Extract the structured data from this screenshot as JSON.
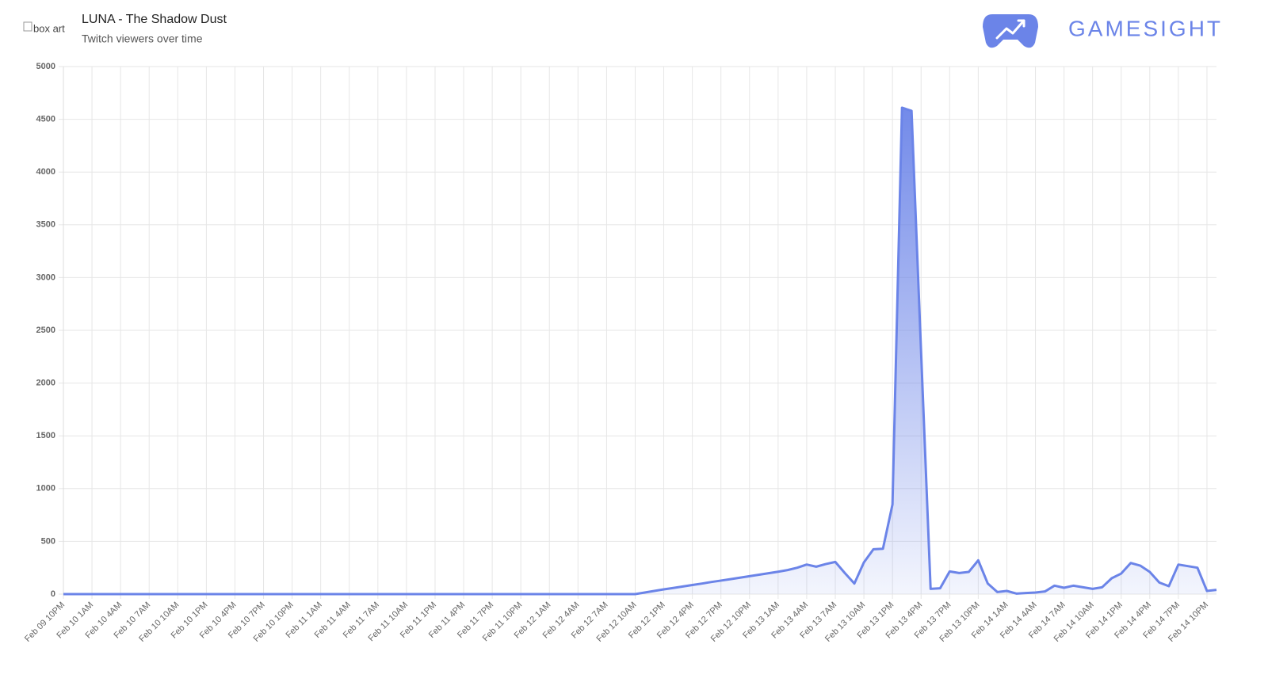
{
  "header": {
    "image_alt": "box art",
    "brand": "GAMESIGHT"
  },
  "chart_data": {
    "type": "area",
    "title": "LUNA - The Shadow Dust",
    "subtitle": "Twitch viewers over time",
    "categories": [
      "Feb 09 10PM",
      null,
      null,
      "Feb 10 1AM",
      null,
      null,
      "Feb 10 4AM",
      null,
      null,
      "Feb 10 7AM",
      null,
      null,
      "Feb 10 10AM",
      null,
      null,
      "Feb 10 1PM",
      null,
      null,
      "Feb 10 4PM",
      null,
      null,
      "Feb 10 7PM",
      null,
      null,
      "Feb 10 10PM",
      null,
      null,
      "Feb 11 1AM",
      null,
      null,
      "Feb 11 4AM",
      null,
      null,
      "Feb 11 7AM",
      null,
      null,
      "Feb 11 10AM",
      null,
      null,
      "Feb 11 1PM",
      null,
      null,
      "Feb 11 4PM",
      null,
      null,
      "Feb 11 7PM",
      null,
      null,
      "Feb 11 10PM",
      null,
      null,
      "Feb 12 1AM",
      null,
      null,
      "Feb 12 4AM",
      null,
      null,
      "Feb 12 7AM",
      null,
      null,
      "Feb 12 10AM",
      null,
      null,
      "Feb 12 1PM",
      null,
      null,
      "Feb 12 4PM",
      null,
      null,
      "Feb 12 7PM",
      null,
      null,
      "Feb 12 10PM",
      null,
      null,
      "Feb 13 1AM",
      null,
      null,
      "Feb 13 4AM",
      null,
      null,
      "Feb 13 7AM",
      null,
      null,
      "Feb 13 10AM",
      null,
      null,
      "Feb 13 1PM",
      null,
      null,
      "Feb 13 4PM",
      null,
      null,
      "Feb 13 7PM",
      null,
      null,
      "Feb 13 10PM",
      null,
      null,
      "Feb 14 1AM",
      null,
      null,
      "Feb 14 4AM",
      null,
      null,
      "Feb 14 7AM",
      null,
      null,
      "Feb 14 10AM",
      null,
      null,
      "Feb 14 1PM",
      null,
      null,
      "Feb 14 4PM",
      null,
      null,
      "Feb 14 7PM",
      null,
      null,
      "Feb 14 10PM",
      null
    ],
    "values": [
      0,
      0,
      0,
      0,
      0,
      0,
      0,
      0,
      0,
      0,
      0,
      0,
      0,
      0,
      0,
      0,
      0,
      0,
      0,
      0,
      0,
      0,
      0,
      0,
      0,
      0,
      0,
      0,
      0,
      0,
      0,
      0,
      0,
      0,
      0,
      0,
      0,
      0,
      0,
      0,
      0,
      0,
      0,
      0,
      0,
      0,
      0,
      0,
      0,
      0,
      0,
      0,
      0,
      0,
      0,
      0,
      0,
      0,
      0,
      0,
      0,
      15,
      30,
      45,
      58,
      72,
      86,
      100,
      115,
      128,
      142,
      156,
      170,
      184,
      198,
      212,
      228,
      250,
      280,
      260,
      285,
      305,
      200,
      100,
      300,
      425,
      430,
      850,
      4610,
      4580,
      2300,
      50,
      55,
      215,
      200,
      210,
      320,
      100,
      20,
      30,
      5,
      10,
      15,
      25,
      80,
      60,
      80,
      65,
      50,
      65,
      150,
      195,
      295,
      270,
      210,
      110,
      75,
      280,
      265,
      250,
      30,
      40
    ],
    "color": "#6b84e8",
    "ylim": [
      0,
      5000
    ],
    "yticks": [
      0,
      500,
      1000,
      1500,
      2000,
      2500,
      3000,
      3500,
      4000,
      4500,
      5000
    ],
    "grid": true
  }
}
